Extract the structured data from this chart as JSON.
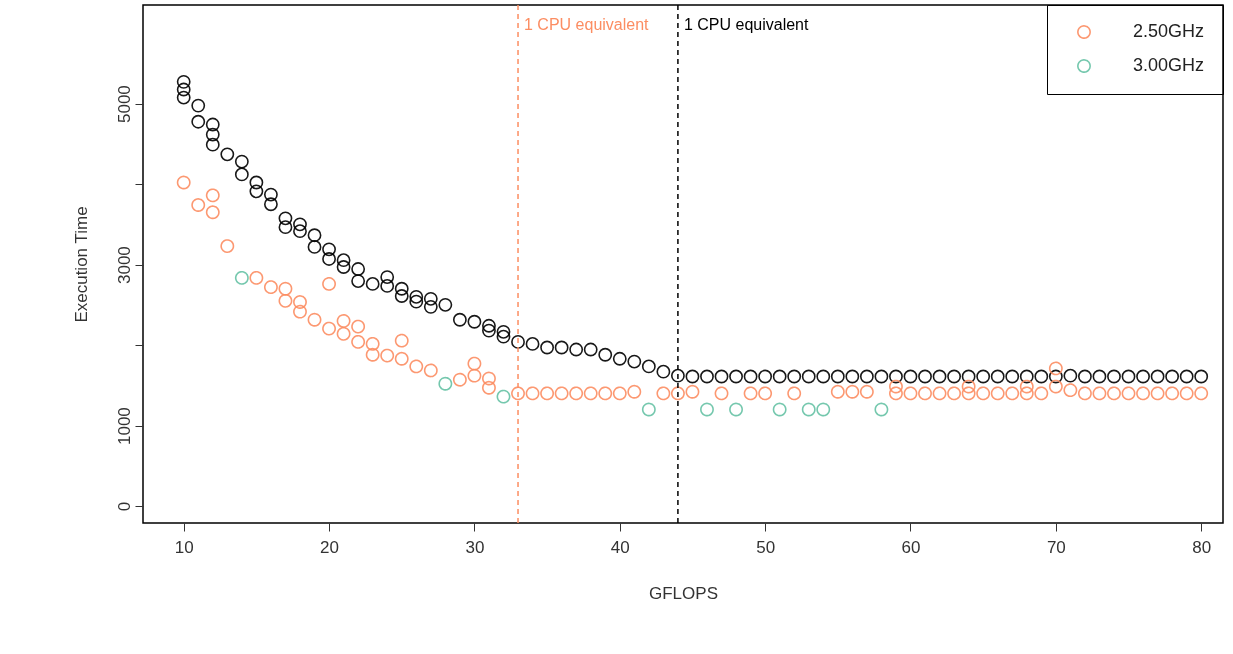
{
  "chart_data": {
    "type": "scatter",
    "xlabel": "GFLOPS",
    "ylabel": "Execution Time",
    "xlim": [
      7.2,
      81.5
    ],
    "ylim": [
      -210,
      6225
    ],
    "xticks": [
      10,
      20,
      30,
      40,
      50,
      60,
      70,
      80
    ],
    "yticks": [
      0,
      1000,
      {
        "value": 2000,
        "label": null
      },
      3000,
      {
        "value": 4000,
        "label": null
      },
      5000
    ],
    "grid": false,
    "legend": "top right",
    "marker": "circle",
    "series": [
      {
        "color": "#000000",
        "x": [
          10,
          10,
          10,
          11,
          11,
          12,
          12,
          12,
          13,
          14,
          14,
          15,
          15,
          16,
          16,
          17,
          17,
          18,
          18,
          19,
          19,
          20,
          20,
          21,
          21,
          22,
          22,
          23,
          24,
          24,
          25,
          25,
          26,
          26,
          27,
          27,
          28,
          29,
          30,
          31,
          31,
          32,
          32,
          33,
          34,
          35,
          36,
          37,
          38,
          39,
          40,
          41,
          42,
          43,
          44,
          45,
          46,
          47,
          48,
          49,
          50,
          51,
          52,
          53,
          54,
          55,
          56,
          57,
          58,
          59,
          60,
          61,
          62,
          63,
          64,
          65,
          66,
          67,
          68,
          69,
          70,
          71,
          72,
          73,
          74,
          75,
          76,
          77,
          78,
          79,
          80
        ],
        "values": [
          5270,
          5175,
          5075,
          4975,
          4775,
          4740,
          4615,
          4490,
          4370,
          4280,
          4120,
          4020,
          3910,
          3870,
          3750,
          3575,
          3465,
          3500,
          3415,
          3365,
          3220,
          3190,
          3070,
          3055,
          2970,
          2945,
          2795,
          2760,
          2845,
          2735,
          2700,
          2610,
          2600,
          2540,
          2575,
          2475,
          2500,
          2315,
          2290,
          2240,
          2180,
          2165,
          2105,
          2040,
          2015,
          1970,
          1970,
          1945,
          1945,
          1880,
          1830,
          1795,
          1735,
          1670,
          1620,
          1610,
          1610,
          1610,
          1610,
          1610,
          1610,
          1610,
          1610,
          1610,
          1610,
          1610,
          1610,
          1610,
          1610,
          1610,
          1610,
          1610,
          1610,
          1610,
          1610,
          1610,
          1610,
          1610,
          1610,
          1610,
          1610,
          1620,
          1610,
          1610,
          1610,
          1610,
          1610,
          1610,
          1610,
          1610,
          1610
        ]
      },
      {
        "name": "2.50GHz",
        "color": "#fc8d62",
        "x": [
          10,
          11,
          12,
          12,
          13,
          15,
          16,
          17,
          17,
          18,
          18,
          19,
          20,
          20,
          21,
          21,
          22,
          22,
          23,
          23,
          24,
          25,
          25,
          26,
          27,
          29,
          30,
          30,
          31,
          31,
          33,
          34,
          35,
          36,
          37,
          38,
          39,
          40,
          41,
          43,
          44,
          45,
          47,
          49,
          50,
          52,
          55,
          56,
          57,
          59,
          59,
          60,
          61,
          62,
          63,
          64,
          64,
          65,
          66,
          67,
          68,
          68,
          69,
          70,
          70,
          71,
          72,
          73,
          74,
          75,
          76,
          77,
          78,
          79,
          80
        ],
        "values": [
          4020,
          3740,
          3860,
          3650,
          3230,
          2835,
          2720,
          2700,
          2550,
          2535,
          2415,
          2315,
          2760,
          2205,
          2300,
          2140,
          2230,
          2040,
          2015,
          1880,
          1870,
          2055,
          1830,
          1735,
          1685,
          1570,
          1770,
          1620,
          1585,
          1470,
          1400,
          1400,
          1400,
          1400,
          1400,
          1400,
          1400,
          1400,
          1420,
          1400,
          1400,
          1420,
          1400,
          1400,
          1400,
          1400,
          1420,
          1420,
          1420,
          1400,
          1485,
          1400,
          1400,
          1400,
          1400,
          1400,
          1485,
          1400,
          1400,
          1400,
          1400,
          1485,
          1400,
          1710,
          1485,
          1440,
          1400,
          1400,
          1400,
          1400,
          1400,
          1400,
          1400,
          1400,
          1400
        ]
      },
      {
        "name": "3.00GHz",
        "color": "#66c2a5",
        "x": [
          14,
          28,
          32,
          42,
          46,
          48,
          51,
          53,
          54,
          58
        ],
        "values": [
          2835,
          1520,
          1360,
          1200,
          1200,
          1200,
          1200,
          1200,
          1200,
          1200
        ]
      }
    ],
    "ref_lines": [
      {
        "axis": "x",
        "value": 33,
        "label": "1 CPU equivalent",
        "color": "#fc8d62",
        "line_style": "dashed"
      },
      {
        "axis": "x",
        "value": 44,
        "label": "1 CPU equivalent",
        "color": "#000000",
        "line_style": "dashed"
      }
    ]
  }
}
